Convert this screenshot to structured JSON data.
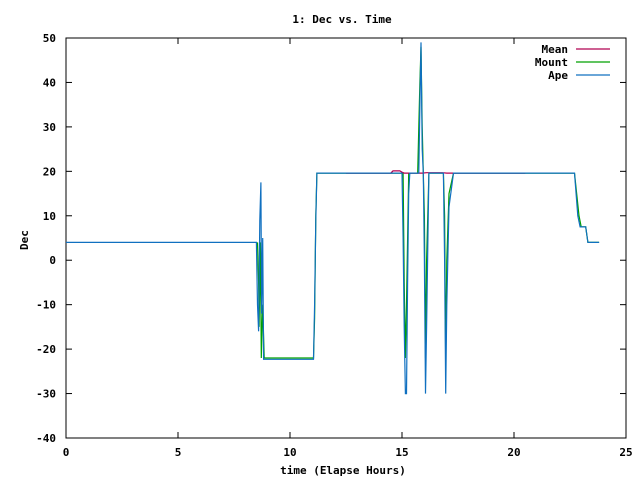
{
  "chart_data": {
    "type": "line",
    "title": "1: Dec vs. Time",
    "xlabel": "time (Elapse Hours)",
    "ylabel": "Dec",
    "xlim": [
      0,
      25
    ],
    "ylim": [
      -40,
      50
    ],
    "xticks": [
      0,
      5,
      10,
      15,
      20,
      25
    ],
    "yticks": [
      -40,
      -30,
      -20,
      -10,
      0,
      10,
      20,
      30,
      40,
      50
    ],
    "legend_position": "top-right",
    "series": [
      {
        "name": "Mean",
        "color": "#b00050",
        "points": [
          [
            12.5,
            19.6
          ],
          [
            14.5,
            19.6
          ],
          [
            14.6,
            20.1
          ],
          [
            14.9,
            20.1
          ],
          [
            15.0,
            19.8
          ],
          [
            15.1,
            19.6
          ],
          [
            15.9,
            19.6
          ],
          [
            16.1,
            19.7
          ],
          [
            16.8,
            19.7
          ],
          [
            17.0,
            19.6
          ],
          [
            20.5,
            19.6
          ]
        ]
      },
      {
        "name": "Mount",
        "color": "#00a000",
        "points": [
          [
            8.55,
            4
          ],
          [
            8.6,
            -5
          ],
          [
            8.62,
            -15
          ],
          [
            8.68,
            4
          ],
          [
            8.72,
            -22
          ],
          [
            8.78,
            -10
          ],
          [
            8.85,
            -22
          ],
          [
            9.0,
            -22
          ],
          [
            11.05,
            -22
          ],
          [
            11.1,
            -13
          ],
          [
            11.15,
            10
          ],
          [
            11.2,
            19.6
          ],
          [
            15.05,
            19.6
          ],
          [
            15.1,
            -5
          ],
          [
            15.15,
            -22
          ],
          [
            15.2,
            -10
          ],
          [
            15.3,
            19.6
          ],
          [
            15.7,
            19.6
          ],
          [
            15.75,
            30
          ],
          [
            15.8,
            40
          ],
          [
            15.85,
            48
          ],
          [
            15.9,
            30
          ],
          [
            15.95,
            19.6
          ],
          [
            16.0,
            10
          ],
          [
            16.05,
            -22
          ],
          [
            16.1,
            0
          ],
          [
            16.2,
            19.6
          ],
          [
            16.85,
            19.6
          ],
          [
            16.9,
            10
          ],
          [
            16.95,
            -23
          ],
          [
            17.0,
            0
          ],
          [
            17.1,
            15
          ],
          [
            17.3,
            19.6
          ],
          [
            22.7,
            19.6
          ],
          [
            22.9,
            10
          ],
          [
            23.0,
            7.5
          ],
          [
            23.2,
            7.5
          ],
          [
            23.3,
            4
          ],
          [
            23.8,
            4
          ]
        ]
      },
      {
        "name": "Ape",
        "color": "#1070c0",
        "points": [
          [
            0,
            4
          ],
          [
            8.5,
            4
          ],
          [
            8.55,
            -10
          ],
          [
            8.6,
            -16
          ],
          [
            8.65,
            9
          ],
          [
            8.7,
            17.5
          ],
          [
            8.73,
            -12
          ],
          [
            8.78,
            5
          ],
          [
            8.82,
            -22.3
          ],
          [
            9.0,
            -22.3
          ],
          [
            11.05,
            -22.3
          ],
          [
            11.1,
            -10
          ],
          [
            11.15,
            9
          ],
          [
            11.2,
            19.6
          ],
          [
            15.0,
            19.6
          ],
          [
            15.05,
            5
          ],
          [
            15.1,
            -15
          ],
          [
            15.15,
            -30
          ],
          [
            15.2,
            -30
          ],
          [
            15.25,
            -5
          ],
          [
            15.3,
            15
          ],
          [
            15.35,
            19.6
          ],
          [
            15.75,
            19.6
          ],
          [
            15.8,
            35
          ],
          [
            15.85,
            49
          ],
          [
            15.9,
            25
          ],
          [
            15.95,
            19.6
          ],
          [
            16.0,
            0
          ],
          [
            16.05,
            -30
          ],
          [
            16.1,
            -15
          ],
          [
            16.2,
            19.6
          ],
          [
            16.85,
            19.6
          ],
          [
            16.9,
            0
          ],
          [
            16.95,
            -30
          ],
          [
            17.0,
            -10
          ],
          [
            17.1,
            12
          ],
          [
            17.3,
            19.6
          ],
          [
            22.7,
            19.6
          ],
          [
            22.85,
            10
          ],
          [
            22.95,
            7.5
          ],
          [
            23.2,
            7.5
          ],
          [
            23.3,
            4
          ],
          [
            23.8,
            4
          ]
        ]
      }
    ]
  }
}
